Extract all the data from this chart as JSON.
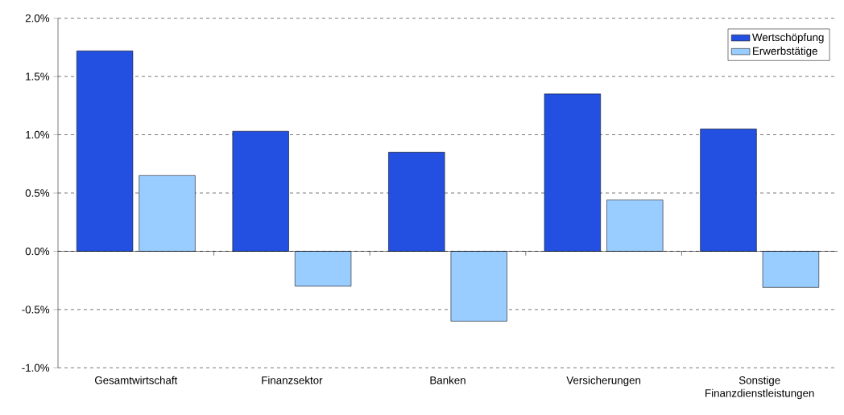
{
  "chart_data": {
    "type": "bar",
    "categories": [
      "Gesamtwirtschaft",
      "Finanzsektor",
      "Banken",
      "Versicherungen",
      "Sonstige Finanzdienstleistungen"
    ],
    "series": [
      {
        "name": "Wertschöpfung",
        "color": "#2350e0",
        "values": [
          1.72,
          1.03,
          0.85,
          1.35,
          1.05
        ]
      },
      {
        "name": "Erwerbstätige",
        "color": "#99ccff",
        "values": [
          0.65,
          -0.3,
          -0.6,
          0.44,
          -0.31
        ]
      }
    ],
    "ylim": [
      -1.0,
      2.0
    ],
    "yticks": [
      {
        "value": -1.0,
        "label": "-1.0%"
      },
      {
        "value": -0.5,
        "label": "-0.5%"
      },
      {
        "value": 0.0,
        "label": "0.0%"
      },
      {
        "value": 0.5,
        "label": "0.5%"
      },
      {
        "value": 1.0,
        "label": "1.0%"
      },
      {
        "value": 1.5,
        "label": "1.5%"
      },
      {
        "value": 2.0,
        "label": "2.0%"
      }
    ],
    "grid": "y",
    "legend": "top right"
  }
}
